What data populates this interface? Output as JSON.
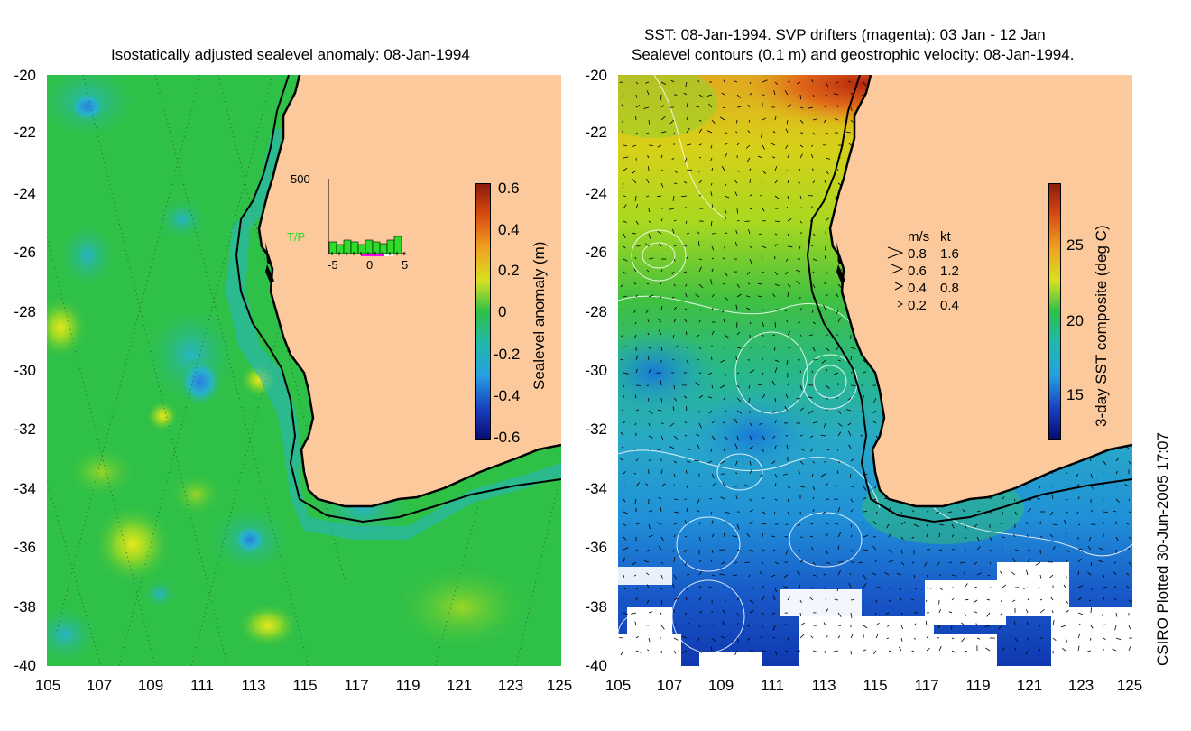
{
  "left_panel": {
    "title": "Isostatically adjusted sealevel anomaly: 08-Jan-1994",
    "y_ticks": [
      "-20",
      "-22",
      "-24",
      "-26",
      "-28",
      "-30",
      "-32",
      "-34",
      "-36",
      "-38",
      "-40"
    ],
    "x_ticks": [
      "105",
      "107",
      "109",
      "111",
      "113",
      "115",
      "117",
      "119",
      "121",
      "123",
      "125"
    ],
    "colorbar": {
      "label": "Sealevel anomaly (m)",
      "ticks": [
        "0.6",
        "0.4",
        "0.2",
        "0",
        "-0.2",
        "-0.4",
        "-0.6"
      ]
    },
    "inset": {
      "y_max_label": "500",
      "series_label": "T/P",
      "x_ticks": [
        "-5",
        "0",
        "5"
      ]
    }
  },
  "right_panel": {
    "title_line1": "SST: 08-Jan-1994. SVP drifters (magenta): 03 Jan - 12 Jan",
    "title_line2": "Sealevel contours (0.1 m) and geostrophic velocity: 08-Jan-1994.",
    "y_ticks": [
      "-20",
      "-22",
      "-24",
      "-26",
      "-28",
      "-30",
      "-32",
      "-34",
      "-36",
      "-38",
      "-40"
    ],
    "x_ticks": [
      "105",
      "107",
      "109",
      "111",
      "113",
      "115",
      "117",
      "119",
      "121",
      "123",
      "125"
    ],
    "colorbar": {
      "label": "3-day SST composite (deg C)",
      "ticks": [
        "25",
        "20",
        "15"
      ]
    },
    "velocity_legend": {
      "header_ms": "m/s",
      "header_kt": "kt",
      "rows": [
        {
          "ms": "0.8",
          "kt": "1.6"
        },
        {
          "ms": "0.6",
          "kt": "1.2"
        },
        {
          "ms": "0.4",
          "kt": "0.8"
        },
        {
          "ms": "0.2",
          "kt": "0.4"
        }
      ]
    }
  },
  "credit": "CSIRO Plotted 30-Jun-2005 17:07",
  "colors": {
    "land": "#fbc99b",
    "ocean_green": "#2fc047",
    "coast": "#000000"
  }
}
